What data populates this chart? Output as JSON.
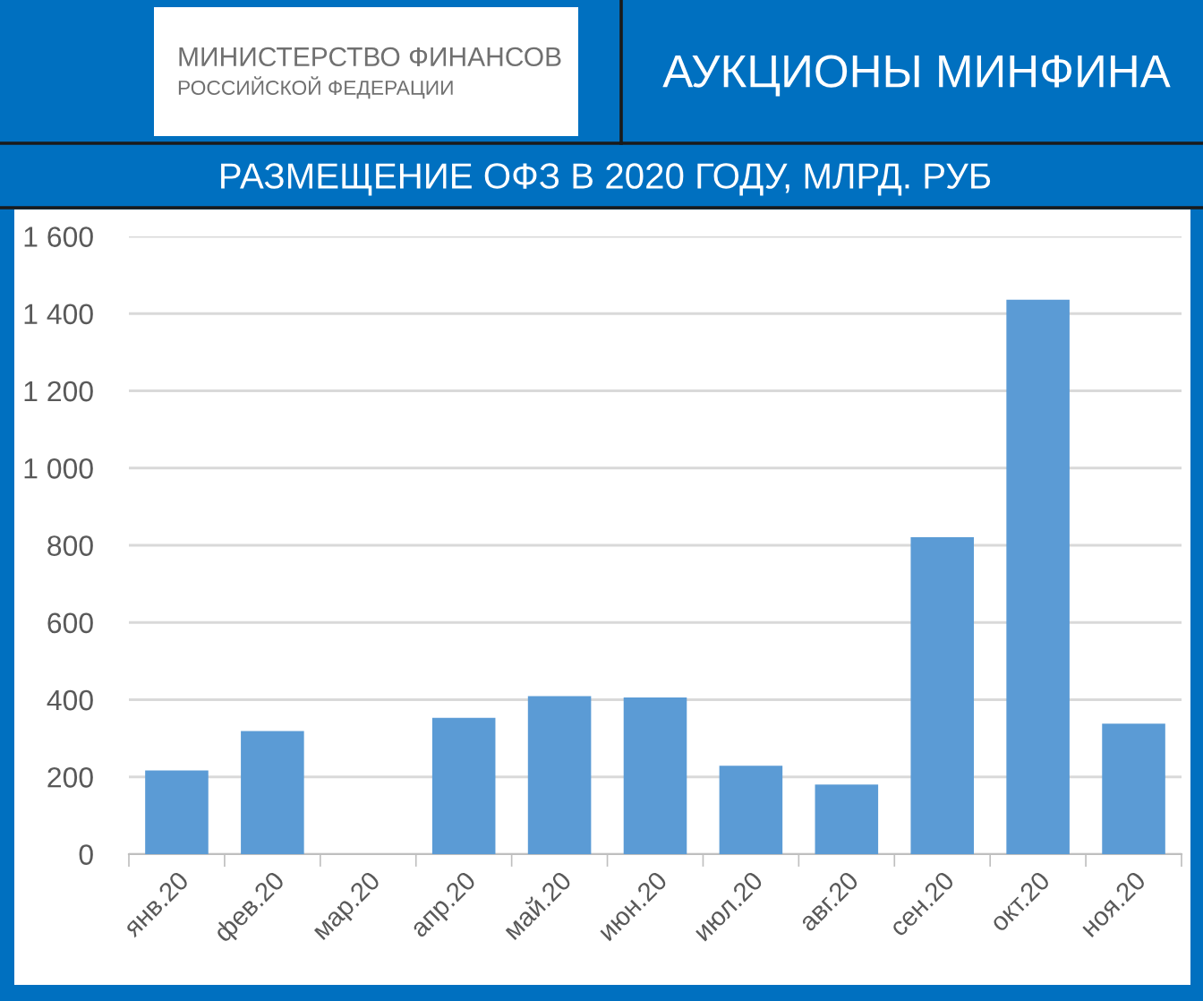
{
  "chart_data": {
    "type": "bar",
    "title": "РАЗМЕЩЕНИЕ ОФЗ В 2020 ГОДУ, МЛРД. РУБ",
    "subtitle": "АУКЦИОНЫ МИНФИНА",
    "annotations": [
      "МИНИСТЕРСТВО ФИНАНСОВ",
      "РОССИЙСКОЙ ФЕДЕРАЦИИ"
    ],
    "categories": [
      "янв.20",
      "фев.20",
      "мар.20",
      "апр.20",
      "май.20",
      "июн.20",
      "июл.20",
      "авг.20",
      "сен.20",
      "окт.20",
      "ноя.20"
    ],
    "values": [
      217,
      319,
      null,
      353,
      409,
      406,
      229,
      180,
      821,
      1436,
      338
    ],
    "color": "#5b9bd5",
    "ylim": [
      0,
      1600
    ],
    "yticks": [
      0,
      200,
      400,
      600,
      800,
      {
        "value": 1000,
        "label": "1 000"
      },
      {
        "value": 1200,
        "label": "1 200"
      },
      {
        "value": 1400,
        "label": "1 400"
      },
      {
        "value": 1600,
        "label": "1 600"
      }
    ],
    "grid": "y"
  }
}
